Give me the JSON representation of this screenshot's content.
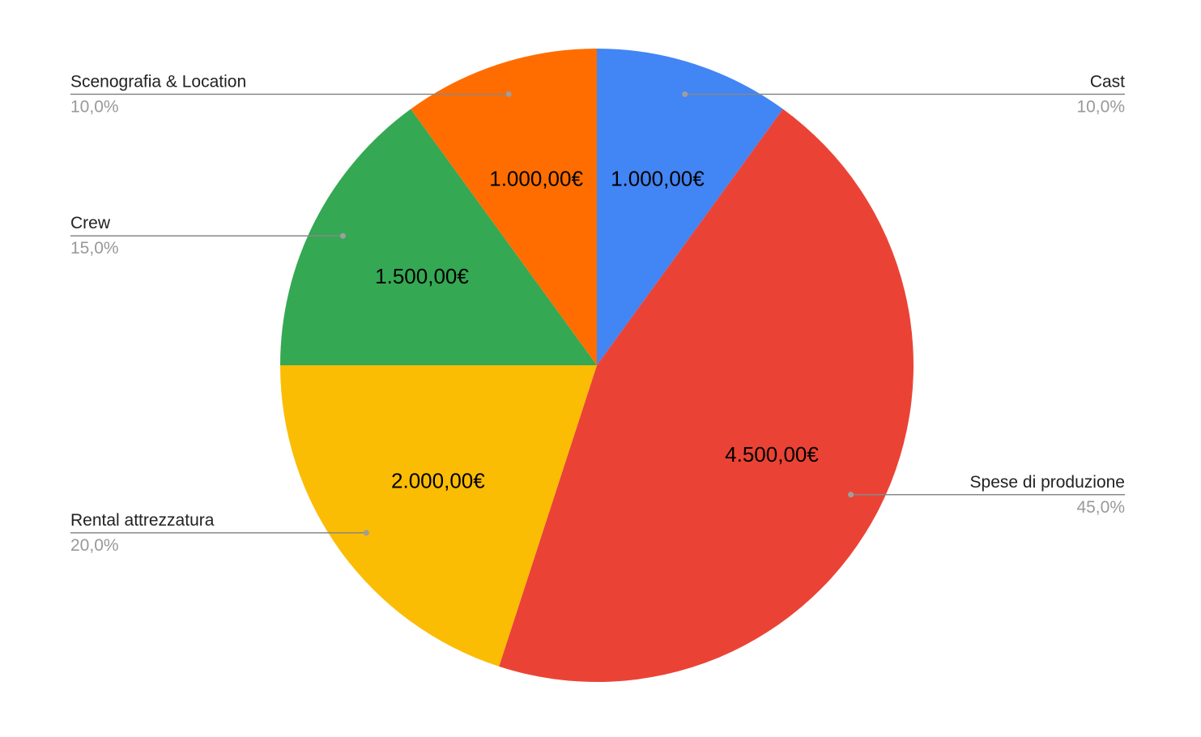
{
  "chart_data": {
    "type": "pie",
    "title": "",
    "start_angle_deg": 0,
    "direction": "clockwise",
    "legend": "labels-outside-with-leader-lines",
    "slices": [
      {
        "label": "Cast",
        "value": 1000,
        "value_label": "1.000,00€",
        "percent_label": "10,0%",
        "color": "#4285F4"
      },
      {
        "label": "Spese di produzione",
        "value": 4500,
        "value_label": "4.500,00€",
        "percent_label": "45,0%",
        "color": "#EA4335"
      },
      {
        "label": "Rental attrezzatura",
        "value": 2000,
        "value_label": "2.000,00€",
        "percent_label": "20,0%",
        "color": "#FBBC04"
      },
      {
        "label": "Crew",
        "value": 1500,
        "value_label": "1.500,00€",
        "percent_label": "15,0%",
        "color": "#34A853"
      },
      {
        "label": "Scenografia & Location",
        "value": 1000,
        "value_label": "1.000,00€",
        "percent_label": "10,0%",
        "color": "#FF6D01"
      }
    ]
  }
}
